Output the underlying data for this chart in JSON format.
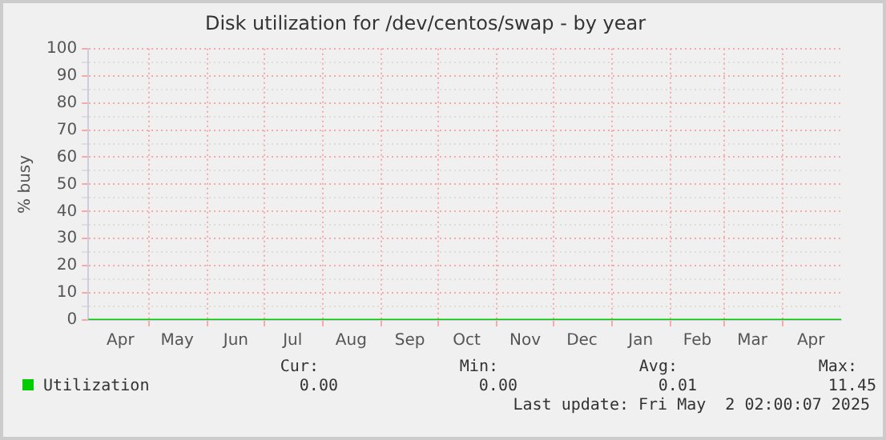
{
  "chart_data": {
    "type": "line",
    "title": "Disk utilization for /dev/centos/swap - by year",
    "ylabel": "% busy",
    "x": [
      "2024-03-30",
      "2024-05-01",
      "2024-06-01",
      "2024-07-01",
      "2024-08-01",
      "2024-09-01",
      "2024-10-01",
      "2024-11-01",
      "2024-12-01",
      "2025-01-01",
      "2025-02-01",
      "2025-03-01",
      "2025-04-01",
      "2025-05-02"
    ],
    "series": [
      {
        "name": "Utilization",
        "color": "#00cc00",
        "values": [
          0,
          0,
          0,
          0,
          0,
          0,
          0,
          0,
          0,
          0,
          0,
          0,
          0,
          0
        ]
      }
    ],
    "xlim": [
      "2024-03-30",
      "2025-05-02"
    ],
    "xticks": [
      {
        "value": "2024-04-16",
        "label": "Apr"
      },
      {
        "value": "2024-05-01",
        "label": null
      },
      {
        "value": "2024-05-16",
        "label": "May"
      },
      {
        "value": "2024-06-01",
        "label": null
      },
      {
        "value": "2024-06-16",
        "label": "Jun"
      },
      {
        "value": "2024-07-01",
        "label": null
      },
      {
        "value": "2024-07-16",
        "label": "Jul"
      },
      {
        "value": "2024-08-01",
        "label": null
      },
      {
        "value": "2024-08-16",
        "label": "Aug"
      },
      {
        "value": "2024-09-01",
        "label": null
      },
      {
        "value": "2024-09-16",
        "label": "Sep"
      },
      {
        "value": "2024-10-01",
        "label": null
      },
      {
        "value": "2024-10-16",
        "label": "Oct"
      },
      {
        "value": "2024-11-01",
        "label": null
      },
      {
        "value": "2024-11-16",
        "label": "Nov"
      },
      {
        "value": "2024-12-01",
        "label": null
      },
      {
        "value": "2024-12-16",
        "label": "Dec"
      },
      {
        "value": "2025-01-01",
        "label": null
      },
      {
        "value": "2025-01-16",
        "label": "Jan"
      },
      {
        "value": "2025-02-01",
        "label": null
      },
      {
        "value": "2025-02-15",
        "label": "Feb"
      },
      {
        "value": "2025-03-01",
        "label": null
      },
      {
        "value": "2025-03-16",
        "label": "Mar"
      },
      {
        "value": "2025-04-01",
        "label": null
      },
      {
        "value": "2025-04-16",
        "label": "Apr"
      }
    ],
    "ylim": [
      0,
      100
    ],
    "yticks": [
      0,
      {
        "value": 5,
        "label": null
      },
      10,
      {
        "value": 15,
        "label": null
      },
      20,
      {
        "value": 25,
        "label": null
      },
      30,
      {
        "value": 35,
        "label": null
      },
      40,
      {
        "value": 45,
        "label": null
      },
      50,
      {
        "value": 55,
        "label": null
      },
      60,
      {
        "value": 65,
        "label": null
      },
      70,
      {
        "value": 75,
        "label": null
      },
      80,
      {
        "value": 85,
        "label": null
      },
      90,
      {
        "value": 95,
        "label": null
      },
      100
    ],
    "grid": true,
    "legend": "bottom left",
    "marker": "none",
    "line_style": "solid",
    "annotations": [
      "Cur:",
      "Min:",
      "Avg:",
      "Max:",
      "0.00",
      "0.00",
      "0.01",
      "11.45",
      "Last update: Fri May  2 02:00:07 2025"
    ]
  }
}
